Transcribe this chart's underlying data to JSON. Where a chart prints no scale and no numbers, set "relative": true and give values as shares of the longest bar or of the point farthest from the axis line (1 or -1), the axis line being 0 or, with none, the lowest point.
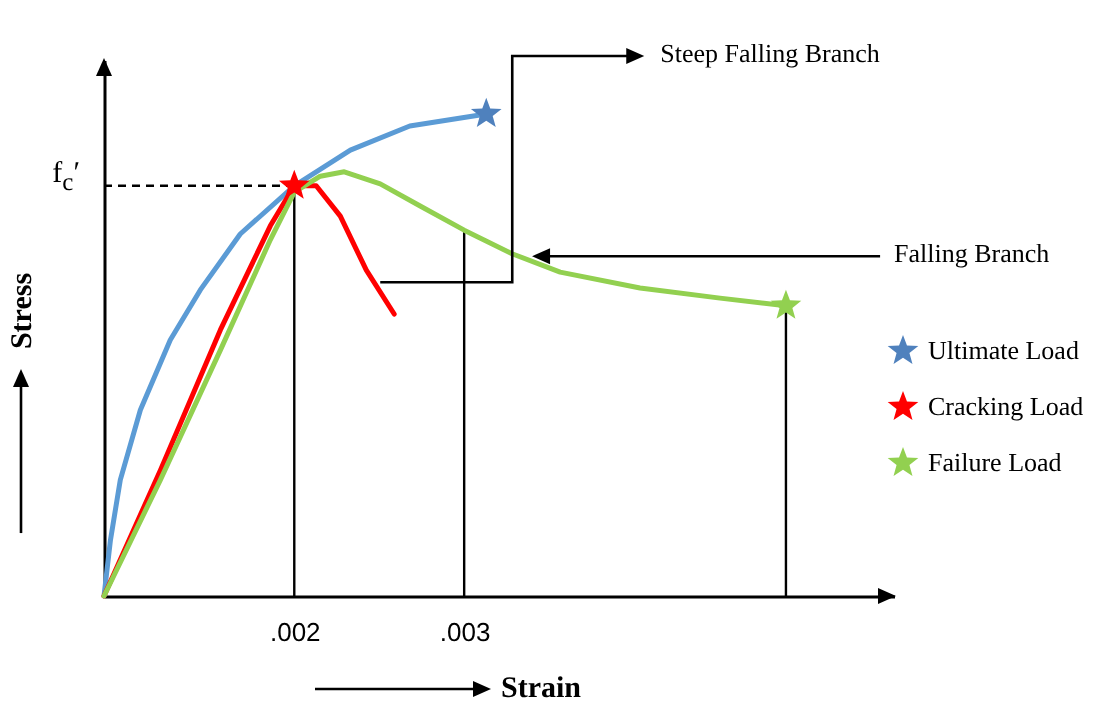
{
  "chart_data": {
    "type": "line",
    "relative": true,
    "xlabel": "Strain",
    "ylabel": "Stress",
    "xlim": [
      0.00088,
      0.00553
    ],
    "xticks": [
      {
        "value": 0.002,
        "label": ".002"
      },
      {
        "value": 0.003,
        "label": ".003"
      }
    ],
    "grid": false,
    "legend": "right",
    "series": [
      {
        "color": "#5b9bd5",
        "x": [
          0.00088,
          0.000918,
          0.000976,
          0.001094,
          0.00127,
          0.001447,
          0.001682,
          0.002,
          0.00233,
          0.00268,
          0.00313
        ],
        "values": [
          0,
          0.116,
          0.241,
          0.386,
          0.531,
          0.635,
          0.751,
          0.851,
          0.925,
          0.975,
          1
        ]
      },
      {
        "color": "#ff0000",
        "x": [
          0.00088,
          0.001212,
          0.001565,
          0.001859,
          0.002,
          0.002129,
          0.002271,
          0.002424,
          0.002588
        ],
        "values": [
          0,
          0.261,
          0.552,
          0.768,
          0.851,
          0.851,
          0.788,
          0.676,
          0.585
        ]
      },
      {
        "color": "#92d050",
        "x": [
          0.00088,
          0.001212,
          0.001565,
          0.001859,
          0.002,
          0.002153,
          0.002294,
          0.002506,
          0.002741,
          0.003,
          0.003282,
          0.003565,
          0.004035,
          0.004506,
          0.004894
        ],
        "values": [
          0,
          0.241,
          0.51,
          0.739,
          0.838,
          0.871,
          0.88,
          0.855,
          0.809,
          0.759,
          0.71,
          0.672,
          0.639,
          0.618,
          0.602
        ]
      },
      {
        "type": "scatter",
        "name": "Ultimate Load",
        "color": "#4f81bd",
        "marker": "star",
        "x": [
          0.00313
        ],
        "values": [
          1
        ]
      },
      {
        "type": "scatter",
        "name": "Cracking Load",
        "color": "#ff0000",
        "marker": "star",
        "x": [
          0.002
        ],
        "values": [
          0.851
        ]
      },
      {
        "type": "scatter",
        "name": "Failure Load",
        "color": "#92d050",
        "marker": "star",
        "x": [
          0.004894
        ],
        "values": [
          0.602
        ]
      }
    ],
    "ref_lines": [
      {
        "axis": "y",
        "value": 0.851,
        "label": "f$_{c}$′",
        "line_style": "dashed"
      },
      {
        "axis": "x",
        "value": 0.002
      },
      {
        "axis": "x",
        "value": 0.003
      },
      {
        "axis": "x",
        "value": 0.004894
      }
    ],
    "annotations": [
      {
        "text": "Steep Falling Branch",
        "x": 0.002506,
        "y": 0.651
      },
      {
        "text": "Falling Branch",
        "x": 0.003388,
        "y": 0.705
      }
    ]
  }
}
